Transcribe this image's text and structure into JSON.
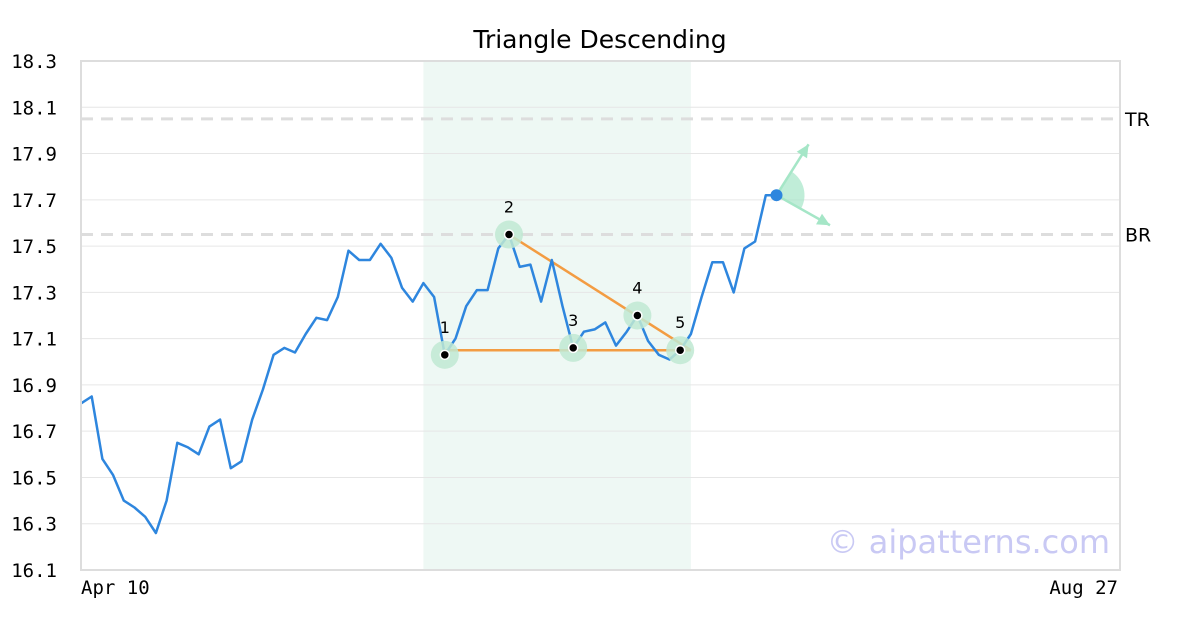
{
  "chart_data": {
    "type": "line",
    "title": "Triangle Descending",
    "xlabel": "",
    "ylabel": "",
    "ylim": [
      16.1,
      18.3
    ],
    "yticks": [
      "16.1",
      "16.3",
      "16.5",
      "16.7",
      "16.9",
      "17.1",
      "17.3",
      "17.5",
      "17.7",
      "17.9",
      "18.1",
      "18.3"
    ],
    "x_tick_labels": [
      "Apr 10",
      "Aug 27"
    ],
    "grid": true,
    "series": [
      {
        "color": "#2e86de",
        "values": [
          16.82,
          16.85,
          16.58,
          16.51,
          16.4,
          16.37,
          16.33,
          16.26,
          16.4,
          16.65,
          16.63,
          16.6,
          16.72,
          16.75,
          16.54,
          16.57,
          16.75,
          16.88,
          17.03,
          17.06,
          17.04,
          17.12,
          17.19,
          17.18,
          17.28,
          17.48,
          17.44,
          17.44,
          17.51,
          17.45,
          17.32,
          17.26,
          17.34,
          17.28,
          17.03,
          17.1,
          17.24,
          17.31,
          17.31,
          17.49,
          17.55,
          17.41,
          17.42,
          17.26,
          17.44,
          17.24,
          17.06,
          17.13,
          17.14,
          17.17,
          17.07,
          17.13,
          17.2,
          17.09,
          17.03,
          17.01,
          17.05,
          17.12,
          17.28,
          17.43,
          17.43,
          17.3,
          17.49,
          17.52,
          17.72,
          17.72
        ]
      }
    ],
    "pattern_highlight": {
      "start_index": 32,
      "end_index": 57,
      "color": "#eef8f4"
    },
    "pattern_points": [
      {
        "label": "1",
        "index": 34,
        "value": 17.03
      },
      {
        "label": "2",
        "index": 40,
        "value": 17.55
      },
      {
        "label": "3",
        "index": 46,
        "value": 17.06
      },
      {
        "label": "4",
        "index": 52,
        "value": 17.2
      },
      {
        "label": "5",
        "index": 56,
        "value": 17.05
      }
    ],
    "pattern_lines": [
      {
        "from": {
          "index": 34,
          "value": 17.05
        },
        "to": {
          "index": 57,
          "value": 17.05
        }
      },
      {
        "from": {
          "index": 40,
          "value": 17.55
        },
        "to": {
          "index": 57,
          "value": 17.05
        }
      }
    ],
    "reference_lines": [
      {
        "label": "TR",
        "value": 18.05
      },
      {
        "label": "BR",
        "value": 17.55
      }
    ],
    "current_point": {
      "index": 65,
      "value": 17.72,
      "color": "#2e86de"
    },
    "projection_arrows": [
      {
        "to_index": 68,
        "to_value": 17.94
      },
      {
        "to_index": 70,
        "to_value": 17.59
      }
    ],
    "colors": {
      "price": "#2e86de",
      "pattern_line": "#f39c42",
      "marker_halo": "#bfe9d2",
      "arrow": "#a5e6c7",
      "reference_line": "#dddddd",
      "grid": "#e6e6e6",
      "frame": "#dddddd"
    }
  },
  "watermark": "© aipatterns.com"
}
